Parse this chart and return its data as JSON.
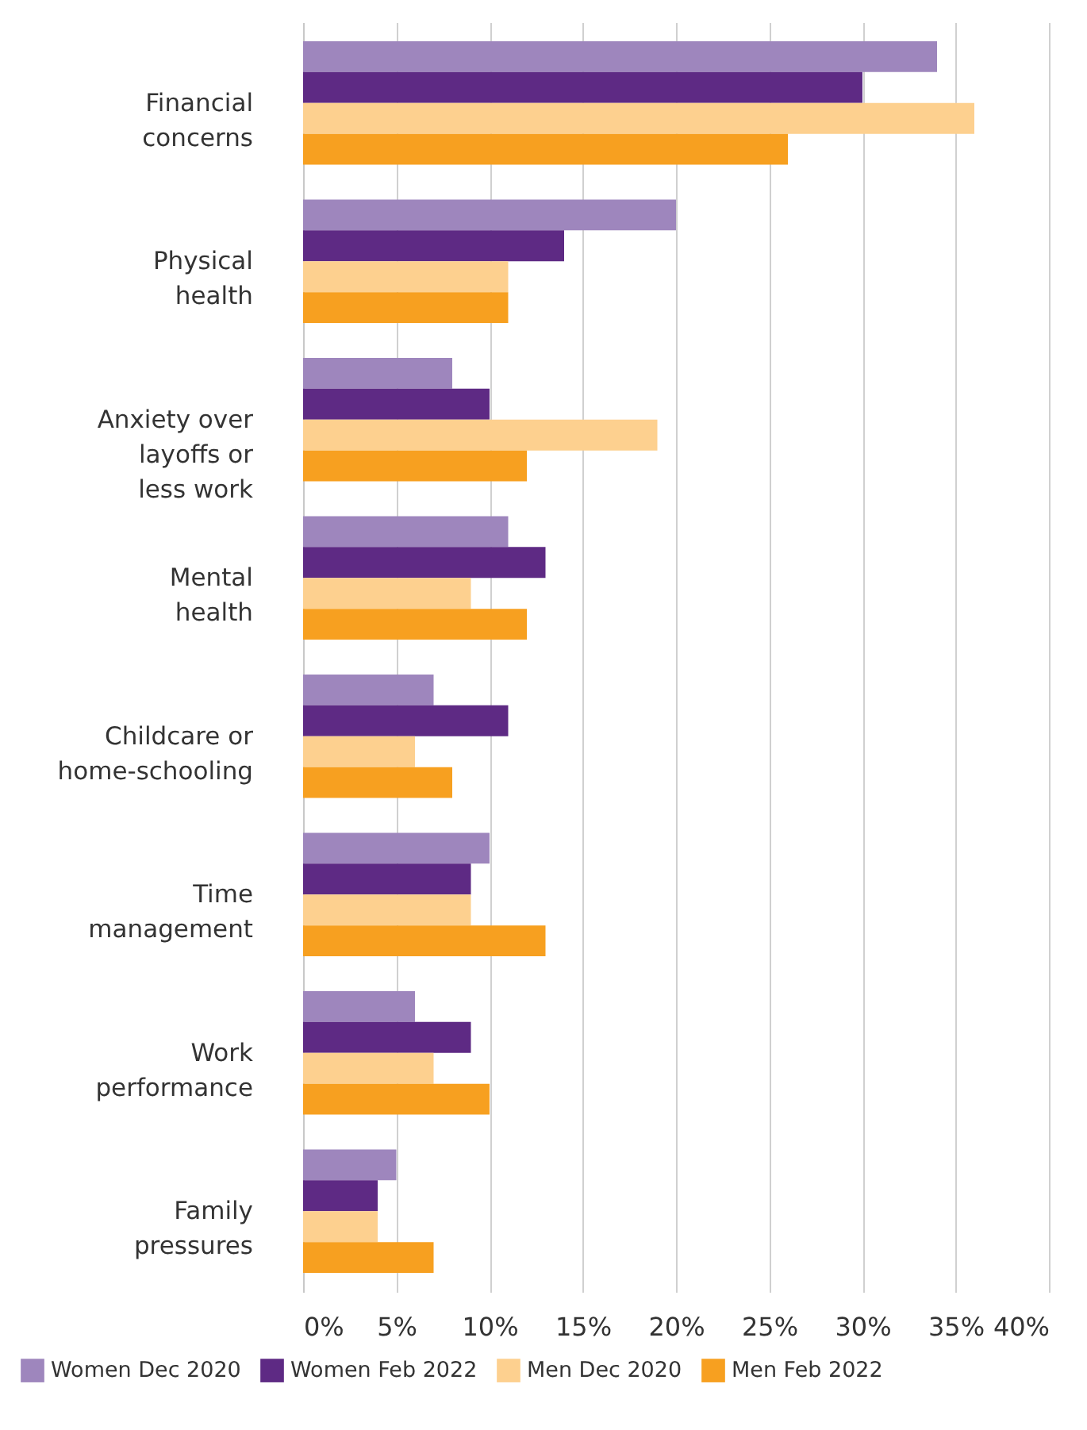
{
  "chart_data": {
    "type": "bar",
    "orientation": "horizontal",
    "categories": [
      "Financial concerns",
      "Physical health",
      "Anxiety over layoffs or less work",
      "Mental health",
      "Childcare or home-schooling",
      "Time management",
      "Work performance",
      "Family pressures"
    ],
    "series": [
      {
        "name": "Women Dec 2020",
        "color": "#9e86bd",
        "values": [
          34,
          20,
          8,
          11,
          7,
          10,
          6,
          5
        ]
      },
      {
        "name": "Women Feb 2022",
        "color": "#5e2a84",
        "values": [
          30,
          14,
          10,
          13,
          11,
          9,
          9,
          4
        ]
      },
      {
        "name": "Men Dec 2020",
        "color": "#fdd08f",
        "values": [
          36,
          11,
          19,
          9,
          6,
          9,
          7,
          4
        ]
      },
      {
        "name": "Men Feb 2022",
        "color": "#f7a020",
        "values": [
          26,
          11,
          12,
          12,
          8,
          13,
          10,
          7
        ]
      }
    ],
    "xlim": [
      0,
      40
    ],
    "xticks": [
      {
        "value": 0,
        "label": "0%"
      },
      {
        "value": 5,
        "label": "5%"
      },
      {
        "value": 10,
        "label": "10%"
      },
      {
        "value": 15,
        "label": "15%"
      },
      {
        "value": 20,
        "label": "20%"
      },
      {
        "value": 25,
        "label": "25%"
      },
      {
        "value": 30,
        "label": "30%"
      },
      {
        "value": 35,
        "label": "35%"
      },
      {
        "value": 40,
        "label": "40%"
      }
    ],
    "grid": "x",
    "legend": "bottom"
  }
}
